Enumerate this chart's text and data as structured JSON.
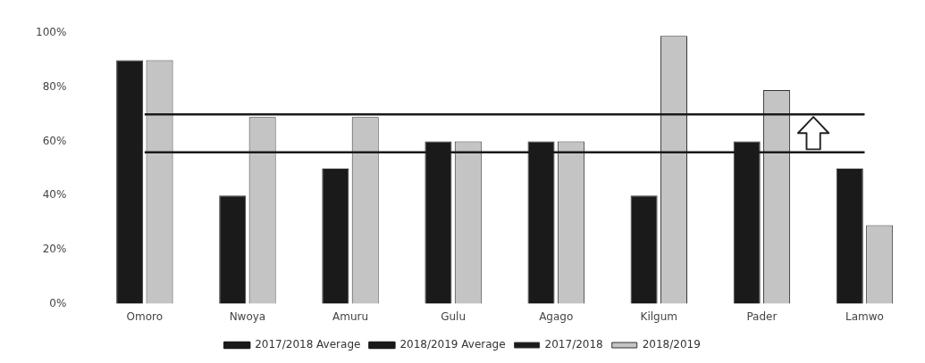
{
  "chart_data": {
    "type": "bar",
    "categories": [
      "Omoro",
      "Nwoya",
      "Amuru",
      "Gulu",
      "Agago",
      "Kilgum",
      "Pader",
      "Lamwo"
    ],
    "series": [
      {
        "name": "2017/2018",
        "color": "#1a1a1a",
        "values": [
          90,
          40,
          50,
          60,
          60,
          40,
          60,
          50
        ]
      },
      {
        "name": "2018/2019",
        "color": "#c4c4c4",
        "values": [
          90,
          69,
          69,
          60,
          60,
          99,
          79,
          29
        ]
      },
      {
        "name": "2017/2018 Average",
        "type": "line",
        "color": "#1a1a1a",
        "values": [
          56,
          56,
          56,
          56,
          56,
          56,
          56,
          56
        ]
      },
      {
        "name": "2018/2019 Average",
        "type": "line",
        "color": "#1a1a1a",
        "values": [
          70,
          70,
          70,
          70,
          70,
          70,
          70,
          70
        ]
      }
    ],
    "ylim": [
      0,
      100
    ],
    "yticks": [
      {
        "value": 0,
        "label": "0%"
      },
      {
        "value": 20,
        "label": "20%"
      },
      {
        "value": 40,
        "label": "40%"
      },
      {
        "value": 60,
        "label": "60%"
      },
      {
        "value": 80,
        "label": "80%"
      },
      {
        "value": 100,
        "label": "100%"
      }
    ],
    "grid": false,
    "legend": "bottom",
    "marker": "none",
    "line_style": "solid"
  }
}
